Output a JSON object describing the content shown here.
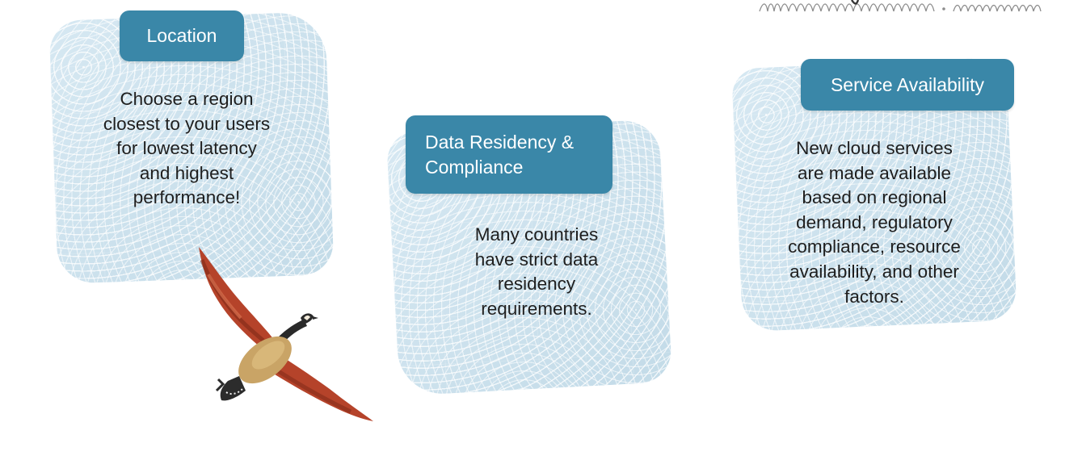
{
  "cards": [
    {
      "title": "Location",
      "body": "Choose a region\nclosest to your users\nfor lowest latency\nand highest\nperformance!"
    },
    {
      "title": "Data Residency &\nCompliance",
      "body": "Many countries\nhave strict data\nresidency\nrequirements."
    },
    {
      "title": "Service Availability",
      "body": "New cloud services\nare made available\nbased on regional\ndemand,  regulatory\ncompliance, resource\navailability, and other\nfactors."
    }
  ],
  "colors": {
    "tab_background": "#3a87a8",
    "tab_text": "#ffffff",
    "card_background": "#cfe3ee",
    "body_text": "#1e1e1e",
    "goose_wing": "#b5432a",
    "goose_body": "#c9a466"
  },
  "decorations": {
    "bird": "flying-goose-illustration",
    "scribble": "hand-drawn-scribble-decoration"
  }
}
